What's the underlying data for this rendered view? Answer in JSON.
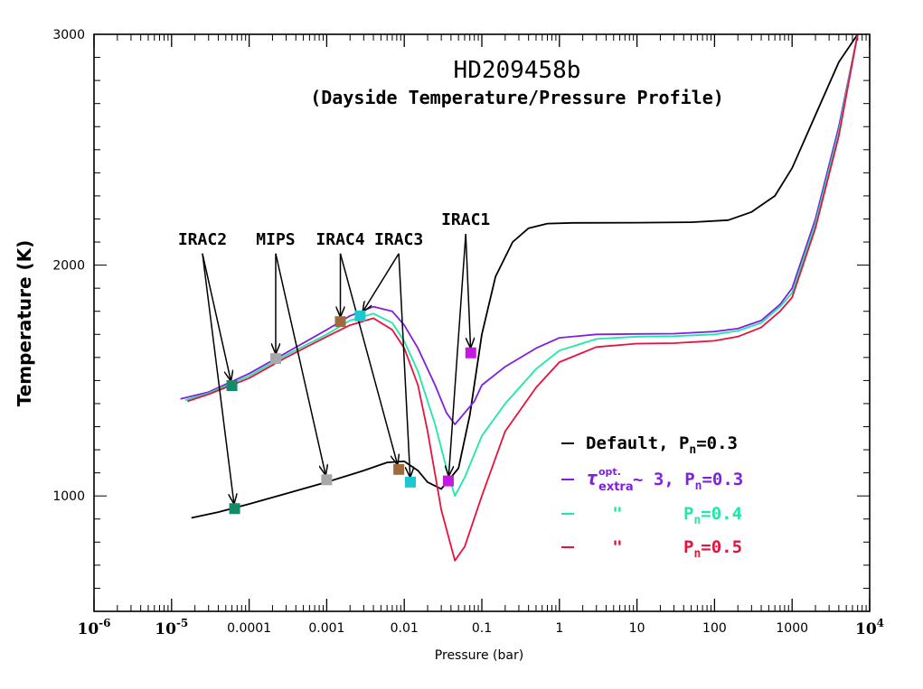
{
  "chart_data": {
    "type": "line",
    "title": "HD209458b",
    "subtitle": "(Dayside Temperature/Pressure Profile)",
    "xlabel": "Pressure (bar)",
    "ylabel": "Temperature (K)",
    "xscale": "log",
    "xlim": [
      1e-06,
      10000
    ],
    "ylim": [
      500,
      3000
    ],
    "x_tick_labels": [
      {
        "value": 1e-06,
        "base": "10",
        "exp": "-6"
      },
      {
        "value": 1e-05,
        "base": "10",
        "exp": "-5"
      },
      {
        "value": 0.0001,
        "text": "0.0001"
      },
      {
        "value": 0.001,
        "text": "0.001"
      },
      {
        "value": 0.01,
        "text": "0.01"
      },
      {
        "value": 0.1,
        "text": "0.1"
      },
      {
        "value": 1,
        "text": "1"
      },
      {
        "value": 10,
        "text": "10"
      },
      {
        "value": 100,
        "text": "100"
      },
      {
        "value": 1000,
        "text": "1000"
      },
      {
        "value": 10000,
        "base": "10",
        "exp": "4"
      }
    ],
    "y_tick_labels": [
      {
        "value": 1000,
        "text": "1000"
      },
      {
        "value": 2000,
        "text": "2000"
      },
      {
        "value": 3000,
        "text": "3000"
      }
    ],
    "legend_position": "bottom-right",
    "series": [
      {
        "name": "Default",
        "legend_text": "Default, P",
        "legend_sub": "n",
        "legend_tail": "=0.3",
        "color": "#000000",
        "points": [
          [
            1.8e-05,
            905
          ],
          [
            4e-05,
            930
          ],
          [
            0.0001,
            965
          ],
          [
            0.0003,
            1010
          ],
          [
            0.001,
            1060
          ],
          [
            0.003,
            1110
          ],
          [
            0.006,
            1145
          ],
          [
            0.01,
            1150
          ],
          [
            0.015,
            1110
          ],
          [
            0.02,
            1060
          ],
          [
            0.03,
            1030
          ],
          [
            0.05,
            1120
          ],
          [
            0.07,
            1350
          ],
          [
            0.1,
            1700
          ],
          [
            0.15,
            1950
          ],
          [
            0.25,
            2100
          ],
          [
            0.4,
            2160
          ],
          [
            0.7,
            2180
          ],
          [
            1.5,
            2183
          ],
          [
            10,
            2184
          ],
          [
            50,
            2186
          ],
          [
            150,
            2195
          ],
          [
            300,
            2230
          ],
          [
            600,
            2300
          ],
          [
            1000,
            2420
          ],
          [
            2000,
            2650
          ],
          [
            4000,
            2880
          ],
          [
            7000,
            3000
          ]
        ]
      },
      {
        "name": "τ extra opt. ~ 3, Pn=0.3",
        "legend_text": "~ 3,  P",
        "legend_sub": "n",
        "legend_tail": "=0.3",
        "legend_tau": "τ",
        "legend_tau_sup": "opt.",
        "legend_tau_sub": "extra",
        "color": "#7f1fe0",
        "points": [
          [
            1.3e-05,
            1420
          ],
          [
            3e-05,
            1450
          ],
          [
            0.0001,
            1530
          ],
          [
            0.0003,
            1620
          ],
          [
            0.001,
            1720
          ],
          [
            0.002,
            1780
          ],
          [
            0.004,
            1820
          ],
          [
            0.007,
            1800
          ],
          [
            0.01,
            1740
          ],
          [
            0.015,
            1640
          ],
          [
            0.025,
            1480
          ],
          [
            0.035,
            1360
          ],
          [
            0.045,
            1310
          ],
          [
            0.06,
            1360
          ],
          [
            0.08,
            1410
          ],
          [
            0.1,
            1480
          ],
          [
            0.2,
            1560
          ],
          [
            0.5,
            1640
          ],
          [
            1,
            1685
          ],
          [
            3,
            1700
          ],
          [
            10,
            1702
          ],
          [
            30,
            1703
          ],
          [
            100,
            1712
          ],
          [
            200,
            1725
          ],
          [
            400,
            1760
          ],
          [
            700,
            1830
          ],
          [
            1000,
            1900
          ],
          [
            2000,
            2200
          ],
          [
            4000,
            2600
          ],
          [
            7000,
            3000
          ]
        ]
      },
      {
        "name": "Pn=0.4",
        "legend_text": "\"",
        "legend_label": "P",
        "legend_sub": "n",
        "legend_tail": "=0.4",
        "color": "#1ee8a8",
        "points": [
          [
            1.5e-05,
            1415
          ],
          [
            3e-05,
            1445
          ],
          [
            0.0001,
            1520
          ],
          [
            0.0003,
            1610
          ],
          [
            0.001,
            1700
          ],
          [
            0.002,
            1760
          ],
          [
            0.004,
            1790
          ],
          [
            0.007,
            1750
          ],
          [
            0.01,
            1670
          ],
          [
            0.015,
            1540
          ],
          [
            0.025,
            1310
          ],
          [
            0.035,
            1120
          ],
          [
            0.045,
            1000
          ],
          [
            0.06,
            1080
          ],
          [
            0.1,
            1260
          ],
          [
            0.2,
            1400
          ],
          [
            0.5,
            1550
          ],
          [
            1,
            1630
          ],
          [
            3,
            1680
          ],
          [
            10,
            1690
          ],
          [
            30,
            1692
          ],
          [
            100,
            1700
          ],
          [
            200,
            1715
          ],
          [
            400,
            1750
          ],
          [
            700,
            1820
          ],
          [
            1000,
            1880
          ],
          [
            2000,
            2180
          ],
          [
            4000,
            2580
          ],
          [
            7000,
            3000
          ]
        ]
      },
      {
        "name": "Pn=0.5",
        "legend_text": "\"",
        "legend_label": "P",
        "legend_sub": "n",
        "legend_tail": "=0.5",
        "color": "#e8123c",
        "points": [
          [
            1.6e-05,
            1410
          ],
          [
            3e-05,
            1440
          ],
          [
            0.0001,
            1510
          ],
          [
            0.0003,
            1600
          ],
          [
            0.001,
            1690
          ],
          [
            0.002,
            1740
          ],
          [
            0.004,
            1770
          ],
          [
            0.007,
            1720
          ],
          [
            0.01,
            1640
          ],
          [
            0.015,
            1480
          ],
          [
            0.02,
            1280
          ],
          [
            0.03,
            940
          ],
          [
            0.045,
            720
          ],
          [
            0.06,
            780
          ],
          [
            0.1,
            1000
          ],
          [
            0.2,
            1280
          ],
          [
            0.5,
            1470
          ],
          [
            1,
            1580
          ],
          [
            3,
            1645
          ],
          [
            10,
            1660
          ],
          [
            30,
            1662
          ],
          [
            100,
            1672
          ],
          [
            200,
            1690
          ],
          [
            400,
            1730
          ],
          [
            700,
            1800
          ],
          [
            1000,
            1860
          ],
          [
            2000,
            2160
          ],
          [
            4000,
            2560
          ],
          [
            7000,
            3000
          ]
        ]
      }
    ],
    "markers": [
      {
        "x": 6e-05,
        "y": 1478,
        "color": "#148a68",
        "label": "IRAC2"
      },
      {
        "x": 6.5e-05,
        "y": 945,
        "color": "#148a68",
        "label": "IRAC2"
      },
      {
        "x": 0.00022,
        "y": 1595,
        "color": "#a8a8a8",
        "label": "MIPS"
      },
      {
        "x": 0.001,
        "y": 1070,
        "color": "#a8a8a8",
        "label": "MIPS"
      },
      {
        "x": 0.0015,
        "y": 1755,
        "color": "#a06a3c",
        "label": "IRAC4"
      },
      {
        "x": 0.0085,
        "y": 1115,
        "color": "#a06a3c",
        "label": "IRAC4"
      },
      {
        "x": 0.0027,
        "y": 1780,
        "color": "#1ac8d0",
        "label": "IRAC3"
      },
      {
        "x": 0.012,
        "y": 1060,
        "color": "#1ac8d0",
        "label": "IRAC3"
      },
      {
        "x": 0.072,
        "y": 1620,
        "color": "#c41ae0",
        "label": "IRAC1"
      },
      {
        "x": 0.037,
        "y": 1065,
        "color": "#c41ae0",
        "label": "IRAC1"
      }
    ],
    "annotations": [
      {
        "label": "IRAC2",
        "anchor": {
          "x": 2.5e-05,
          "y": 2050
        }
      },
      {
        "label": "MIPS",
        "anchor": {
          "x": 0.00022,
          "y": 2050
        }
      },
      {
        "label": "IRAC4",
        "anchor": {
          "x": 0.0015,
          "y": 2050
        }
      },
      {
        "label": "IRAC3",
        "anchor": {
          "x": 0.0085,
          "y": 2050
        }
      },
      {
        "label": "IRAC1",
        "anchor": {
          "x": 0.062,
          "y": 2135
        }
      }
    ]
  }
}
